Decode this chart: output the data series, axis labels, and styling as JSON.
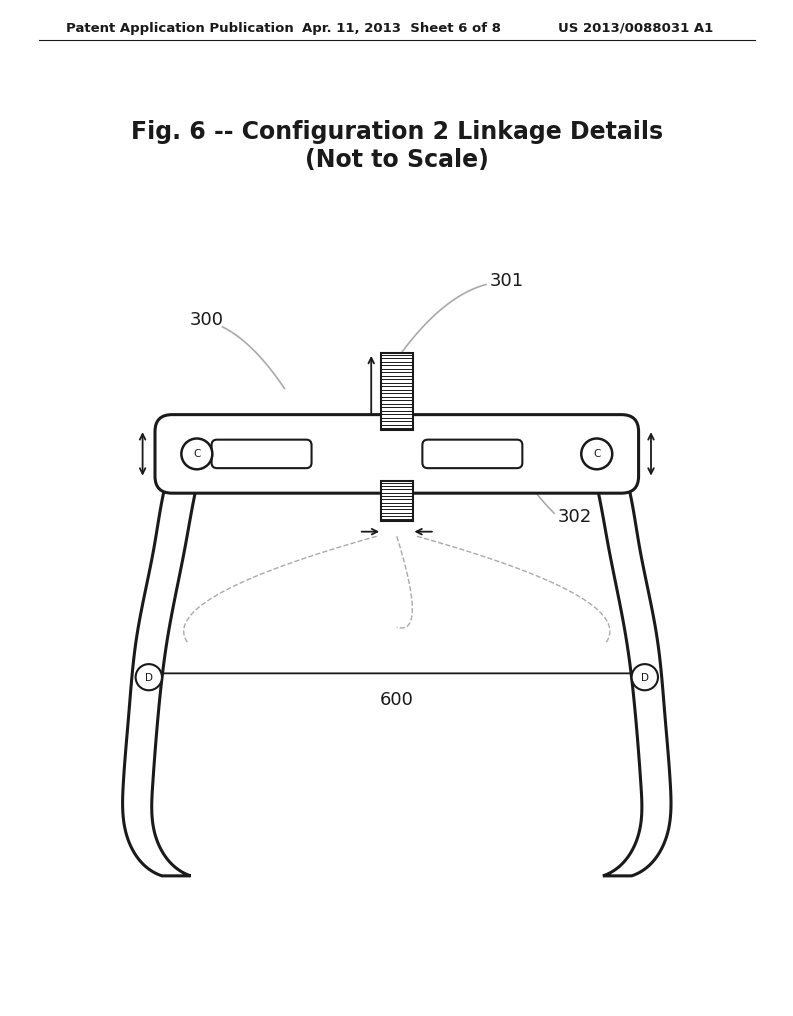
{
  "title_line1": "Fig. 6 -- Configuration 2 Linkage Details",
  "title_line2": "(Not to Scale)",
  "header_left": "Patent Application Publication",
  "header_center": "Apr. 11, 2013  Sheet 6 of 8",
  "header_right": "US 2013/0088031 A1",
  "label_300": "300",
  "label_301": "301",
  "label_302": "302",
  "label_600": "600",
  "label_C": "C",
  "label_D": "D",
  "bg_color": "#ffffff",
  "line_color": "#1a1a1a",
  "gray_line_color": "#aaaaaa"
}
